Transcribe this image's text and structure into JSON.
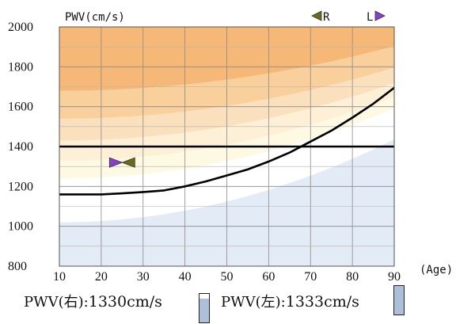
{
  "chart_data": {
    "type": "line",
    "ylabel": "PWV(cm/s)",
    "xlabel": "(Age)",
    "xlim": [
      10,
      90
    ],
    "ylim": [
      800,
      2000
    ],
    "xticks": [
      10,
      20,
      30,
      40,
      50,
      60,
      70,
      80,
      90
    ],
    "yticks": [
      800,
      1000,
      1200,
      1400,
      1600,
      1800,
      2000
    ],
    "grid": true,
    "series": [
      {
        "x": [
          10,
          20,
          25,
          30,
          35,
          40,
          45,
          50,
          55,
          60,
          65,
          70,
          75,
          80,
          85,
          90
        ],
        "y": [
          1160,
          1160,
          1165,
          1172,
          1180,
          1200,
          1225,
          1255,
          1285,
          1325,
          1370,
          1425,
          1480,
          1545,
          1615,
          1695
        ],
        "color": "#000000"
      },
      {
        "x": [
          10,
          90
        ],
        "y": [
          1400,
          1400
        ],
        "color": "#000000"
      }
    ],
    "markers": {
      "patient": {
        "age": 25,
        "pwv": 1320
      },
      "right_label": "R",
      "left_label": "L",
      "right_color": "#6b6b1e",
      "left_color": "#8a3fc8"
    },
    "colors": {
      "band_dark": "#f6b877",
      "band_mid": "#f9cf9b",
      "band_light": "#fbe0bd",
      "band_pale": "#fdf0d6",
      "band_cream": "#fdf9e2",
      "normal": "#ffffff",
      "low": "#e3ebf6"
    }
  },
  "readout": {
    "right_label": "PWV(右):",
    "right_value": "1330cm/s",
    "right_fill": 0.82,
    "left_label": "PWV(左):",
    "left_value": "1333cm/s",
    "left_fill": 1.0
  }
}
